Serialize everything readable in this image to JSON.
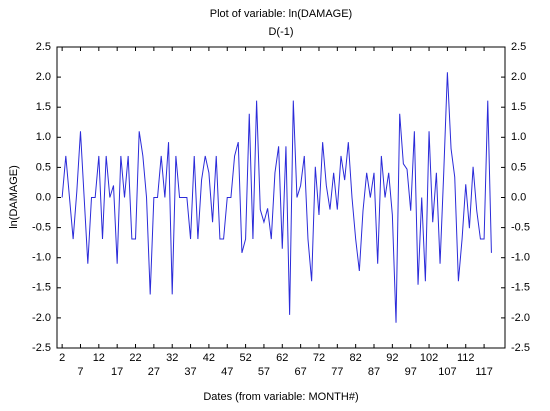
{
  "chart_data": {
    "type": "line",
    "title": "Plot of variable: ln(DAMAGE)",
    "subtitle": "D(-1)",
    "x_label": "Dates (from variable: MONTH#)",
    "y_label": "ln(DAMAGE)",
    "x": [
      2,
      3,
      4,
      5,
      6,
      7,
      8,
      9,
      10,
      11,
      12,
      13,
      14,
      15,
      16,
      17,
      18,
      19,
      20,
      21,
      22,
      23,
      24,
      25,
      26,
      27,
      28,
      29,
      30,
      31,
      32,
      33,
      34,
      35,
      36,
      37,
      38,
      39,
      40,
      41,
      42,
      43,
      44,
      45,
      46,
      47,
      48,
      49,
      50,
      51,
      52,
      53,
      54,
      55,
      56,
      57,
      58,
      59,
      60,
      61,
      62,
      63,
      64,
      65,
      66,
      67,
      68,
      69,
      70,
      71,
      72,
      73,
      74,
      75,
      76,
      77,
      78,
      79,
      80,
      81,
      82,
      83,
      84,
      85,
      86,
      87,
      88,
      89,
      90,
      91,
      92,
      93,
      94,
      95,
      96,
      97,
      98,
      99,
      100,
      101,
      102,
      103,
      104,
      105,
      106,
      107,
      108,
      109,
      110,
      111,
      112,
      113,
      114,
      115,
      116,
      117,
      118,
      119
    ],
    "series": [
      {
        "name": "ln(DAMAGE)",
        "color": "#2b2bd9",
        "values": [
          0,
          0.69,
          0,
          -0.69,
          0.1,
          1.1,
          0,
          -1.1,
          0,
          0,
          0.69,
          -0.69,
          0.69,
          0,
          0.2,
          -1.1,
          0.69,
          0,
          0.69,
          -0.69,
          -0.69,
          1.1,
          0.69,
          0,
          -1.61,
          0,
          0,
          0.69,
          0,
          0.92,
          -1.61,
          0.69,
          0,
          0,
          0,
          -0.69,
          0.69,
          -0.69,
          0.29,
          0.69,
          0.41,
          -0.41,
          0.69,
          -0.69,
          -0.69,
          0,
          0,
          0.69,
          0.92,
          -0.92,
          -0.69,
          1.39,
          -0.69,
          1.61,
          -0.2,
          -0.41,
          -0.18,
          -0.69,
          0.41,
          0.85,
          -0.85,
          0.85,
          -1.95,
          1.61,
          0,
          0.2,
          0.69,
          -0.69,
          -1.39,
          0.51,
          -0.29,
          0.92,
          0.2,
          -0.2,
          0.41,
          -0.2,
          0.69,
          0.29,
          0.92,
          0,
          -0.69,
          -1.22,
          -0.22,
          0.41,
          0,
          0.41,
          -1.1,
          0.69,
          0,
          0.41,
          -0.29,
          -2.08,
          1.39,
          0.56,
          0.47,
          -0.22,
          1.1,
          -1.45,
          0,
          -1.39,
          1.1,
          -0.41,
          0.41,
          -1.1,
          0.41,
          2.08,
          0.81,
          0.34,
          -1.39,
          -0.69,
          0.22,
          -0.51,
          0.51,
          -0.22,
          -0.69,
          -0.69,
          1.61,
          -0.92
        ]
      }
    ],
    "xlim": [
      0.6,
      122.7
    ],
    "xticks": [
      2,
      7,
      12,
      17,
      22,
      27,
      32,
      37,
      42,
      47,
      52,
      57,
      62,
      67,
      72,
      77,
      82,
      87,
      92,
      97,
      102,
      107,
      112,
      117
    ],
    "ylim": [
      -2.5,
      2.5
    ],
    "yticks": [
      -2.5,
      {
        "value": -2,
        "label": "-2.0"
      },
      -1.5,
      {
        "value": -1,
        "label": "-1.0"
      },
      -0.5,
      {
        "value": 0,
        "label": "0.0"
      },
      0.5,
      {
        "value": 1,
        "label": "1.0"
      },
      1.5,
      {
        "value": 2,
        "label": "2.0"
      },
      2.5
    ],
    "grid": false
  }
}
